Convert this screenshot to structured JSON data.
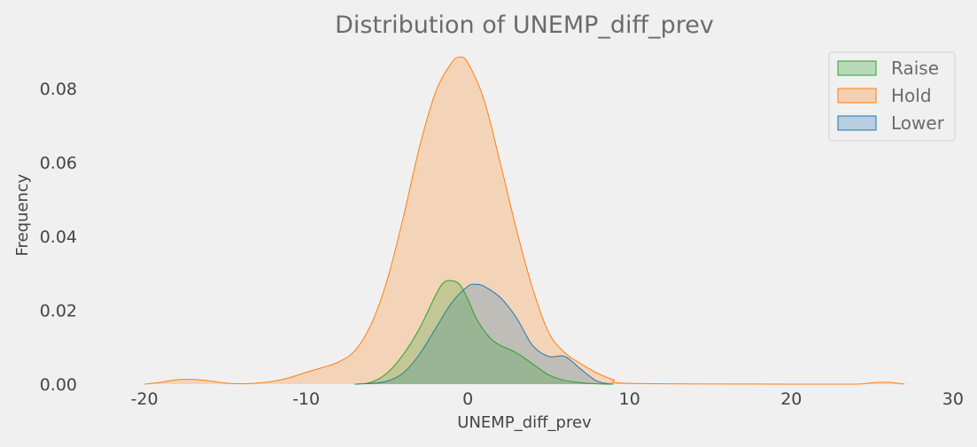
{
  "chart_data": {
    "type": "area",
    "title": "Distribution of UNEMP_diff_prev",
    "xlabel": "UNEMP_diff_prev",
    "ylabel": "Frequency",
    "xlim": [
      -24,
      30.5
    ],
    "ylim": [
      0,
      0.092
    ],
    "xticks": [
      -20,
      -10,
      0,
      10,
      20,
      30
    ],
    "yticks": [
      0.0,
      0.02,
      0.04,
      0.06,
      0.08
    ],
    "grid": false,
    "legend_position": "top-right",
    "series": [
      {
        "name": "Raise",
        "color": "#2ca02c",
        "x": [
          -7,
          -6,
          -5,
          -4,
          -3,
          -2,
          -1.5,
          -1,
          -0.5,
          0,
          0.5,
          1,
          1.5,
          2,
          3,
          4,
          5,
          6,
          7,
          8,
          9
        ],
        "y": [
          0,
          0.0005,
          0.003,
          0.008,
          0.015,
          0.024,
          0.0275,
          0.028,
          0.027,
          0.023,
          0.018,
          0.0145,
          0.012,
          0.0105,
          0.0085,
          0.0055,
          0.0025,
          0.001,
          0.0004,
          0.0001,
          0
        ]
      },
      {
        "name": "Hold",
        "color": "#ff7f0e",
        "x": [
          -20,
          -19,
          -18,
          -17,
          -16,
          -15,
          -14,
          -13,
          -12,
          -11,
          -10,
          -9,
          -8,
          -7,
          -6,
          -5,
          -4,
          -3,
          -2,
          -1,
          -0.5,
          0,
          1,
          2,
          3,
          4,
          5,
          6,
          7,
          8,
          9,
          10,
          20,
          24,
          25,
          26,
          27
        ],
        "y": [
          0,
          0.0005,
          0.0012,
          0.0013,
          0.0009,
          0.0003,
          0.0001,
          0.0003,
          0.0008,
          0.0018,
          0.0032,
          0.0045,
          0.006,
          0.009,
          0.016,
          0.028,
          0.045,
          0.064,
          0.079,
          0.087,
          0.0885,
          0.087,
          0.077,
          0.06,
          0.042,
          0.026,
          0.014,
          0.0085,
          0.0055,
          0.003,
          0.0012,
          0.0002,
          0,
          0,
          0.0004,
          0.0005,
          0
        ]
      },
      {
        "name": "Lower",
        "color": "#1f77b4",
        "x": [
          -7,
          -6,
          -5,
          -4,
          -3,
          -2,
          -1,
          0,
          0.5,
          1,
          2,
          3,
          4,
          5,
          6,
          7,
          8,
          9
        ],
        "y": [
          0,
          0.0002,
          0.0008,
          0.003,
          0.008,
          0.015,
          0.022,
          0.0265,
          0.027,
          0.0265,
          0.0235,
          0.018,
          0.0105,
          0.0075,
          0.0075,
          0.004,
          0.0008,
          0
        ]
      }
    ]
  }
}
